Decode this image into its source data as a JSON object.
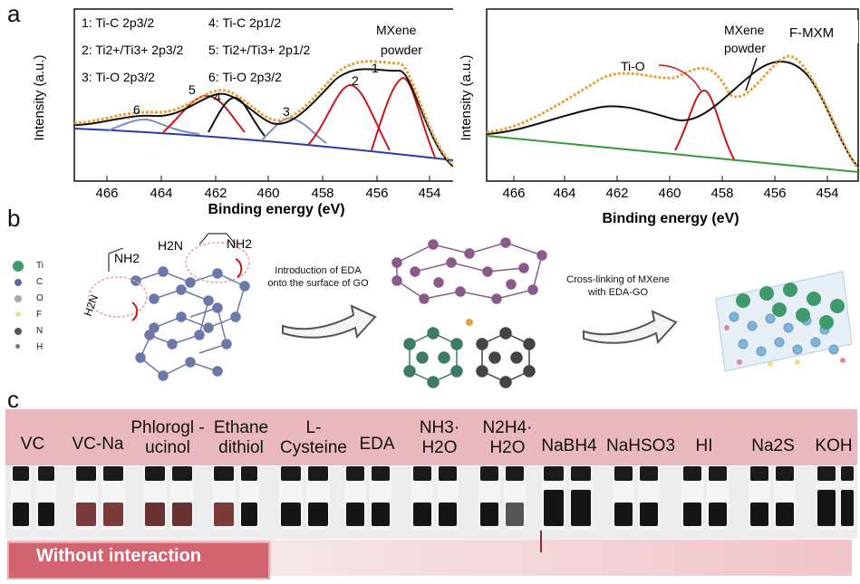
{
  "panel_a": {
    "letter": "a",
    "left_chart": {
      "ylabel": "Intensity (a.u.)",
      "xlabel": "Binding energy (eV)",
      "ticks": [
        "466",
        "464",
        "462",
        "460",
        "458",
        "456",
        "454"
      ],
      "legend_lines": [
        "1: Ti-C 2p3/2",
        "2: Ti2+/Ti3+ 2p3/2",
        "3: Ti-O 2p3/2",
        "4: Ti-C 2p1/2",
        "5: Ti2+/Ti3+ 2p1/2",
        "6: Ti-O 2p3/2"
      ],
      "sample_label_1": "MXene",
      "sample_label_2": "powder",
      "peak_numbers": [
        "6",
        "5",
        "4",
        "3",
        "2",
        "1"
      ]
    },
    "right_chart": {
      "ylabel": "Intensity (a.u.)",
      "xlabel": "Binding energy (eV)",
      "ticks": [
        "466",
        "464",
        "462",
        "460",
        "458",
        "456",
        "454"
      ],
      "sample_label": "F-MXM",
      "annotation_tio": "Ti-O",
      "annotation_mxene_1": "MXene",
      "annotation_mxene_2": "powder"
    }
  },
  "panel_b": {
    "letter": "b",
    "legend": [
      {
        "symbol": "Ti",
        "color": "#3e9a6a"
      },
      {
        "symbol": "C",
        "color": "#5a6aa0"
      },
      {
        "symbol": "O",
        "color": "#a8a8a8"
      },
      {
        "symbol": "F",
        "color": "#e8e08a"
      },
      {
        "symbol": "N",
        "color": "#555555"
      },
      {
        "symbol": "H",
        "color": "#777777"
      }
    ],
    "nh2_label": "NH2",
    "h2n_label": "H2N",
    "arrow1_text": [
      "Introduction of EDA",
      "onto the surface of GO"
    ],
    "arrow2_text": [
      "Cross-linking of MXene",
      "with EDA-GO"
    ]
  },
  "panel_c": {
    "letter": "c",
    "reagents": [
      "VC",
      "VC-Na",
      "Phlorogl -ucinol",
      "Ethane dithiol",
      "L- Cysteine",
      "EDA",
      "NH3· H2O",
      "N2H4· H2O",
      "NaBH4",
      "NaHSO3",
      "HI",
      "Na2S",
      "KOH"
    ],
    "bottom_label": "Without interaction"
  },
  "colors": {
    "experimental": "#e8a23a",
    "fit": "#111111",
    "ti_c": "#c8161d",
    "ti_o": "#7a8bcf",
    "background_line": "#2b3c9c",
    "green_bg": "#3a9a3a",
    "strip": "#e9b8be",
    "liquid_brown": "#7a3b3b"
  }
}
